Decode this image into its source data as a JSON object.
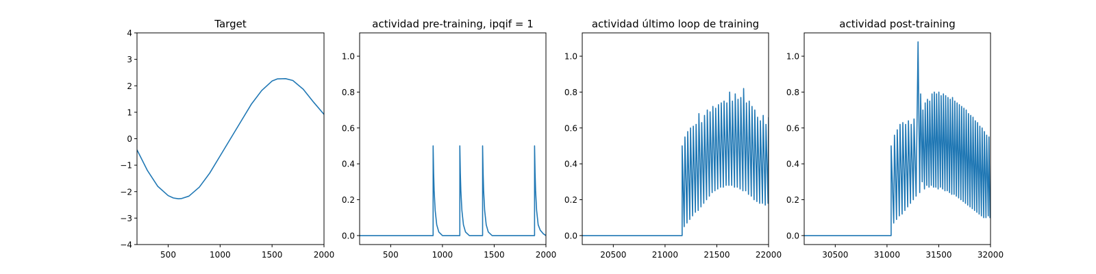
{
  "figure": {
    "line_color": "#1f77b4"
  },
  "chart_data": [
    {
      "type": "line",
      "title": "Target",
      "xlabel": "",
      "ylabel": "",
      "xlim": [
        200,
        2000
      ],
      "ylim": [
        -4,
        4
      ],
      "xticks": [
        500,
        1000,
        1500,
        2000
      ],
      "yticks": [
        -4,
        -3,
        -2,
        -1,
        0,
        1,
        2,
        3,
        4
      ],
      "xtick_labels": [
        "500",
        "1000",
        "1500",
        "2000"
      ],
      "ytick_labels": [
        "−4",
        "−3",
        "−2",
        "−1",
        "0",
        "1",
        "2",
        "3",
        "4"
      ],
      "grid": false,
      "series": [
        {
          "values_x": [
            200,
            300,
            400,
            500,
            550,
            600,
            630,
            700,
            800,
            900,
            1000,
            1100,
            1200,
            1300,
            1400,
            1500,
            1550,
            1630,
            1700,
            1800,
            1900,
            2000
          ],
          "values_y": [
            -0.42,
            -1.2,
            -1.8,
            -2.15,
            -2.24,
            -2.27,
            -2.26,
            -2.17,
            -1.83,
            -1.3,
            -0.65,
            0.0,
            0.65,
            1.3,
            1.82,
            2.18,
            2.26,
            2.27,
            2.2,
            1.87,
            1.38,
            0.92
          ]
        }
      ]
    },
    {
      "type": "line",
      "title": "actividad pre-training, ipqif = 1",
      "xlabel": "",
      "ylabel": "",
      "xlim": [
        200,
        2000
      ],
      "ylim": [
        -0.05,
        1.13
      ],
      "xticks": [
        500,
        1000,
        1500,
        2000
      ],
      "yticks": [
        0.0,
        0.2,
        0.4,
        0.6,
        0.8,
        1.0
      ],
      "xtick_labels": [
        "500",
        "1000",
        "1500",
        "2000"
      ],
      "ytick_labels": [
        "0.0",
        "0.2",
        "0.4",
        "0.6",
        "0.8",
        "1.0"
      ],
      "grid": false,
      "series": [
        {
          "values_x": [
            200,
            910,
            910,
            915,
            920,
            930,
            945,
            965,
            1000,
            1168,
            1168,
            1173,
            1178,
            1188,
            1203,
            1223,
            1260,
            1388,
            1388,
            1393,
            1398,
            1408,
            1423,
            1443,
            1480,
            1890,
            1890,
            1895,
            1900,
            1910,
            1925,
            1945,
            1975,
            2000
          ],
          "values_y": [
            0.0,
            0.0,
            0.5,
            0.35,
            0.25,
            0.14,
            0.06,
            0.02,
            0.0,
            0.0,
            0.5,
            0.35,
            0.25,
            0.14,
            0.06,
            0.02,
            0.0,
            0.0,
            0.5,
            0.35,
            0.25,
            0.14,
            0.06,
            0.02,
            0.0,
            0.0,
            0.5,
            0.35,
            0.25,
            0.14,
            0.06,
            0.03,
            0.01,
            0.0
          ]
        }
      ]
    },
    {
      "type": "line",
      "title": "actividad último loop de training",
      "xlabel": "",
      "ylabel": "",
      "xlim": [
        20200,
        22000
      ],
      "ylim": [
        -0.05,
        1.13
      ],
      "xticks": [
        20500,
        21000,
        21500,
        22000
      ],
      "yticks": [
        0.0,
        0.2,
        0.4,
        0.6,
        0.8,
        1.0
      ],
      "xtick_labels": [
        "20500",
        "21000",
        "21500",
        "22000"
      ],
      "ytick_labels": [
        "0.0",
        "0.2",
        "0.4",
        "0.6",
        "0.8",
        "1.0"
      ],
      "grid": false,
      "series": [
        {
          "values_x": [
            20200,
            21165,
            21165,
            21185,
            21192,
            21212,
            21219,
            21239,
            21246,
            21266,
            21273,
            21293,
            21300,
            21320,
            21327,
            21347,
            21354,
            21374,
            21381,
            21401,
            21408,
            21428,
            21435,
            21455,
            21462,
            21482,
            21489,
            21509,
            21516,
            21536,
            21543,
            21563,
            21570,
            21590,
            21597,
            21617,
            21624,
            21644,
            21651,
            21671,
            21678,
            21698,
            21705,
            21725,
            21732,
            21752,
            21759,
            21779,
            21786,
            21806,
            21813,
            21833,
            21840,
            21860,
            21867,
            21887,
            21894,
            21914,
            21921,
            21941,
            21948,
            21968,
            21975,
            21995,
            22000
          ],
          "values_y": [
            0.0,
            0.0,
            0.5,
            0.05,
            0.55,
            0.07,
            0.58,
            0.09,
            0.6,
            0.11,
            0.61,
            0.13,
            0.62,
            0.14,
            0.68,
            0.16,
            0.63,
            0.18,
            0.67,
            0.2,
            0.7,
            0.22,
            0.69,
            0.24,
            0.72,
            0.25,
            0.71,
            0.26,
            0.73,
            0.27,
            0.74,
            0.27,
            0.75,
            0.28,
            0.74,
            0.28,
            0.8,
            0.28,
            0.75,
            0.27,
            0.79,
            0.27,
            0.76,
            0.26,
            0.77,
            0.25,
            0.82,
            0.25,
            0.74,
            0.23,
            0.75,
            0.22,
            0.72,
            0.2,
            0.7,
            0.19,
            0.66,
            0.18,
            0.64,
            0.18,
            0.67,
            0.17,
            0.62,
            0.18,
            0.66
          ]
        }
      ]
    },
    {
      "type": "line",
      "title": "actividad post-training",
      "xlabel": "",
      "ylabel": "",
      "xlim": [
        30200,
        32000
      ],
      "ylim": [
        -0.05,
        1.13
      ],
      "xticks": [
        30500,
        31000,
        31500,
        32000
      ],
      "yticks": [
        0.0,
        0.2,
        0.4,
        0.6,
        0.8,
        1.0
      ],
      "xtick_labels": [
        "30500",
        "31000",
        "31500",
        "32000"
      ],
      "ytick_labels": [
        "0.0",
        "0.2",
        "0.4",
        "0.6",
        "0.8",
        "1.0"
      ],
      "grid": false,
      "series": [
        {
          "values_x": [
            30200,
            31040,
            31040,
            31065,
            31072,
            31092,
            31099,
            31119,
            31126,
            31146,
            31153,
            31173,
            31180,
            31200,
            31207,
            31227,
            31234,
            31254,
            31261,
            31281,
            31300,
            31316,
            31325,
            31340,
            31347,
            31362,
            31369,
            31384,
            31391,
            31406,
            31413,
            31428,
            31435,
            31450,
            31457,
            31472,
            31479,
            31494,
            31501,
            31516,
            31523,
            31538,
            31545,
            31560,
            31567,
            31582,
            31589,
            31604,
            31611,
            31626,
            31633,
            31648,
            31655,
            31670,
            31677,
            31692,
            31699,
            31714,
            31721,
            31736,
            31743,
            31758,
            31765,
            31780,
            31787,
            31802,
            31809,
            31824,
            31831,
            31846,
            31853,
            31868,
            31875,
            31890,
            31897,
            31912,
            31919,
            31934,
            31941,
            31956,
            31963,
            31978,
            31985,
            31995,
            32000
          ],
          "values_y": [
            0.0,
            0.0,
            0.5,
            0.07,
            0.56,
            0.09,
            0.59,
            0.11,
            0.62,
            0.12,
            0.63,
            0.14,
            0.62,
            0.16,
            0.64,
            0.18,
            0.62,
            0.2,
            0.65,
            0.22,
            1.08,
            0.24,
            0.79,
            0.3,
            0.7,
            0.26,
            0.74,
            0.28,
            0.76,
            0.27,
            0.75,
            0.28,
            0.79,
            0.27,
            0.8,
            0.27,
            0.79,
            0.26,
            0.8,
            0.27,
            0.78,
            0.26,
            0.79,
            0.25,
            0.78,
            0.25,
            0.77,
            0.24,
            0.76,
            0.23,
            0.77,
            0.23,
            0.75,
            0.22,
            0.74,
            0.21,
            0.73,
            0.2,
            0.72,
            0.19,
            0.71,
            0.18,
            0.7,
            0.17,
            0.68,
            0.16,
            0.67,
            0.15,
            0.66,
            0.14,
            0.64,
            0.13,
            0.63,
            0.12,
            0.61,
            0.11,
            0.6,
            0.1,
            0.58,
            0.1,
            0.56,
            0.11,
            0.55,
            0.1,
            0.25
          ]
        }
      ]
    }
  ]
}
